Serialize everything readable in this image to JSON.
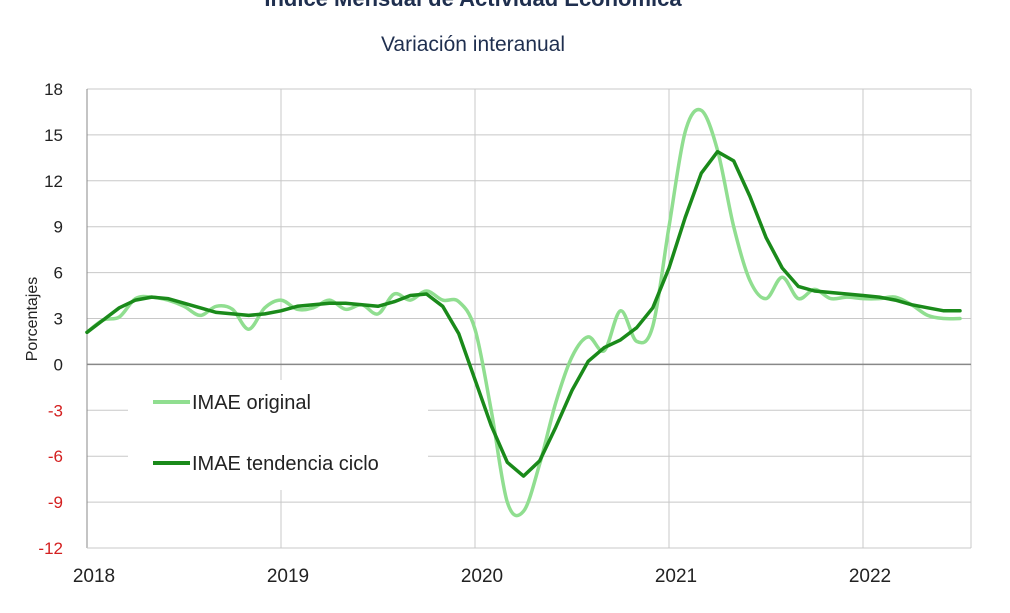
{
  "title": "Índice Mensual de Actividad Económica",
  "subtitle": "Variación interanual",
  "colors": {
    "original": "#90de90",
    "trend": "#1a8a1a",
    "negative_tick": "#d42020",
    "grid": "#c8c8c8",
    "zero_line": "#888888",
    "text": "#1f2f4f"
  },
  "chart_data": {
    "type": "line",
    "ylabel": "Porcentajes",
    "xlabel": "",
    "ylim": [
      -12,
      18
    ],
    "yticks": [
      18,
      15,
      12,
      9,
      6,
      3,
      0,
      -3,
      -6,
      -9,
      -12
    ],
    "x_tick_labels": [
      "2018",
      "2019",
      "2020",
      "2021",
      "2022"
    ],
    "x_axis": "months from January 2018 (0 = Jan 2018)",
    "grid": true,
    "legend": "lower-left",
    "series": [
      {
        "name": "IMAE original",
        "x": [
          0,
          1,
          2,
          3,
          4,
          5,
          6,
          7,
          8,
          9,
          10,
          11,
          12,
          13,
          14,
          15,
          16,
          17,
          18,
          19,
          20,
          21,
          22,
          23,
          24,
          25,
          26,
          27,
          28,
          29,
          30,
          31,
          32,
          33,
          34,
          35,
          36,
          37,
          38,
          39,
          40,
          41,
          42,
          43,
          44,
          45,
          46,
          47,
          48,
          49,
          50,
          51,
          52,
          53,
          54
        ],
        "values": [
          2.1,
          2.9,
          3.1,
          4.3,
          4.4,
          4.2,
          3.8,
          3.2,
          3.8,
          3.6,
          2.3,
          3.7,
          4.2,
          3.6,
          3.7,
          4.2,
          3.6,
          3.9,
          3.3,
          4.6,
          4.2,
          4.8,
          4.2,
          4.1,
          2.3,
          -3.0,
          -9.0,
          -9.6,
          -6.5,
          -2.5,
          0.5,
          1.8,
          0.9,
          3.5,
          1.5,
          2.5,
          9.0,
          15.2,
          16.6,
          14.0,
          9.0,
          5.5,
          4.3,
          5.7,
          4.3,
          4.9,
          4.3,
          4.4,
          4.3,
          4.3,
          4.4,
          3.9,
          3.2,
          3.0,
          3.0
        ],
        "color": "#90de90"
      },
      {
        "name": "IMAE tendencia ciclo",
        "x": [
          0,
          1,
          2,
          3,
          4,
          5,
          6,
          7,
          8,
          9,
          10,
          11,
          12,
          13,
          14,
          15,
          16,
          17,
          18,
          19,
          20,
          21,
          22,
          23,
          24,
          25,
          26,
          27,
          28,
          29,
          30,
          31,
          32,
          33,
          34,
          35,
          36,
          37,
          38,
          39,
          40,
          41,
          42,
          43,
          44,
          45,
          46,
          47,
          48,
          49,
          50,
          51,
          52,
          53,
          54
        ],
        "values": [
          2.1,
          2.9,
          3.7,
          4.2,
          4.4,
          4.3,
          4.0,
          3.7,
          3.4,
          3.3,
          3.2,
          3.3,
          3.5,
          3.8,
          3.9,
          4.0,
          4.0,
          3.9,
          3.8,
          4.1,
          4.5,
          4.6,
          3.8,
          2.0,
          -1.0,
          -4.0,
          -6.4,
          -7.3,
          -6.3,
          -4.1,
          -1.7,
          0.2,
          1.1,
          1.6,
          2.4,
          3.7,
          6.3,
          9.6,
          12.5,
          13.9,
          13.3,
          11.0,
          8.3,
          6.3,
          5.1,
          4.8,
          4.7,
          4.6,
          4.5,
          4.4,
          4.2,
          3.9,
          3.7,
          3.5,
          3.5
        ],
        "color": "#1a8a1a"
      }
    ]
  }
}
